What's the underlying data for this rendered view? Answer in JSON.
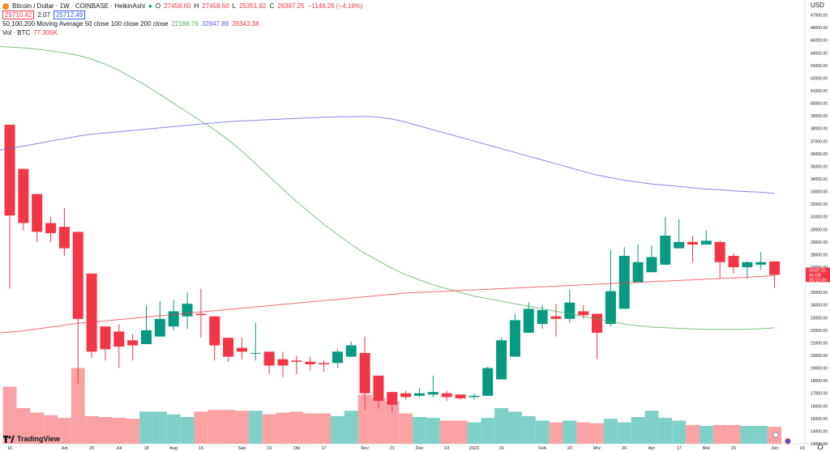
{
  "legend": {
    "symbol": "Bitcoin / Dollar · 1W · COINBASE · HeikinAshi",
    "o_label": "O",
    "o": "27458.60",
    "h_label": "H",
    "h": "27458.60",
    "l_label": "L",
    "l": "25351.92",
    "c_label": "C",
    "c": "26397.25",
    "change": "−1146.26 (−4.16%)",
    "bid": "25710.42",
    "spread": "2.07",
    "ask": "25712.49",
    "ma_title": "50,100,200 Moving Average 50 close 100 close 200 close",
    "ma50_value": "22186.76",
    "ma100_value": "32847.89",
    "ma200_value": "26343.38",
    "vol_title": "Vol · BTC",
    "vol_value": "77.305K"
  },
  "currency": "USD",
  "brand": "TradingView",
  "colors": {
    "up": "#089981",
    "down": "#f23645",
    "ma50": "#4caf50",
    "ma100": "#5b5fe0",
    "ma200": "#f23645",
    "vol_up": "#7fd1c8",
    "vol_down": "#faa1a4"
  },
  "price_badges": [
    "26397.25",
    "4d 10h",
    "25712.49"
  ],
  "chart_data": {
    "type": "candlestick",
    "ylim": [
      13000,
      48000
    ],
    "y_ticks": [
      "13000.00",
      "14000.00",
      "15000.00",
      "16000.00",
      "17000.00",
      "18000.00",
      "19000.00",
      "20000.00",
      "21000.00",
      "22000.00",
      "23000.00",
      "24000.00",
      "25000.00",
      "26000.00",
      "27000.00",
      "28000.00",
      "29000.00",
      "30000.00",
      "31000.00",
      "32000.00",
      "33000.00",
      "34000.00",
      "35000.00",
      "36000.00",
      "37000.00",
      "38000.00",
      "39000.00",
      "40000.00",
      "41000.00",
      "42000.00",
      "43000.00",
      "44000.00",
      "45000.00",
      "46000.00",
      "47000.00"
    ],
    "x_ticks": [
      {
        "label": "16",
        "bar": 0
      },
      {
        "label": "Jun",
        "bar": 4
      },
      {
        "label": "20",
        "bar": 6
      },
      {
        "label": "Jul",
        "bar": 8
      },
      {
        "label": "18",
        "bar": 10
      },
      {
        "label": "Aug",
        "bar": 12
      },
      {
        "label": "15",
        "bar": 14
      },
      {
        "label": "Sep",
        "bar": 17
      },
      {
        "label": "19",
        "bar": 19
      },
      {
        "label": "Okt",
        "bar": 21
      },
      {
        "label": "17",
        "bar": 23
      },
      {
        "label": "Nov",
        "bar": 26
      },
      {
        "label": "21",
        "bar": 28
      },
      {
        "label": "Dez",
        "bar": 30
      },
      {
        "label": "19",
        "bar": 32
      },
      {
        "label": "2023",
        "bar": 34
      },
      {
        "label": "16",
        "bar": 36
      },
      {
        "label": "Feb",
        "bar": 39
      },
      {
        "label": "20",
        "bar": 41
      },
      {
        "label": "Mrz",
        "bar": 43
      },
      {
        "label": "20",
        "bar": 45
      },
      {
        "label": "Apr",
        "bar": 47
      },
      {
        "label": "17",
        "bar": 49
      },
      {
        "label": "Mai",
        "bar": 51
      },
      {
        "label": "15",
        "bar": 53
      },
      {
        "label": "Jun",
        "bar": 56
      },
      {
        "label": "19",
        "bar": 58
      }
    ],
    "candles": [
      {
        "o": 38300,
        "h": 38300,
        "l": 25300,
        "c": 31100
      },
      {
        "o": 34800,
        "h": 34800,
        "l": 29900,
        "c": 30500
      },
      {
        "o": 32800,
        "h": 32800,
        "l": 29000,
        "c": 29800
      },
      {
        "o": 30500,
        "h": 31000,
        "l": 29000,
        "c": 29700
      },
      {
        "o": 30200,
        "h": 31700,
        "l": 27900,
        "c": 28500
      },
      {
        "o": 29800,
        "h": 29800,
        "l": 17700,
        "c": 22900
      },
      {
        "o": 26500,
        "h": 26500,
        "l": 19800,
        "c": 20300
      },
      {
        "o": 22300,
        "h": 22300,
        "l": 19600,
        "c": 20500
      },
      {
        "o": 21900,
        "h": 22500,
        "l": 19000,
        "c": 20700
      },
      {
        "o": 21200,
        "h": 21700,
        "l": 19600,
        "c": 20800
      },
      {
        "o": 20900,
        "h": 24000,
        "l": 20900,
        "c": 22000
      },
      {
        "o": 21500,
        "h": 24300,
        "l": 21500,
        "c": 22900
      },
      {
        "o": 22300,
        "h": 24400,
        "l": 22000,
        "c": 23500
      },
      {
        "o": 23100,
        "h": 25000,
        "l": 22100,
        "c": 24100
      },
      {
        "o": 23300,
        "h": 25300,
        "l": 21400,
        "c": 23200
      },
      {
        "o": 23100,
        "h": 23100,
        "l": 19600,
        "c": 20800
      },
      {
        "o": 21400,
        "h": 21400,
        "l": 19500,
        "c": 19900
      },
      {
        "o": 20600,
        "h": 21400,
        "l": 19700,
        "c": 20300
      },
      {
        "o": 20200,
        "h": 22600,
        "l": 19600,
        "c": 20200
      },
      {
        "o": 20300,
        "h": 20300,
        "l": 18500,
        "c": 19200
      },
      {
        "o": 19700,
        "h": 20300,
        "l": 18300,
        "c": 19200
      },
      {
        "o": 19600,
        "h": 20000,
        "l": 18500,
        "c": 19500
      },
      {
        "o": 19500,
        "h": 19900,
        "l": 18800,
        "c": 19300
      },
      {
        "o": 19400,
        "h": 19600,
        "l": 18700,
        "c": 19300
      },
      {
        "o": 19400,
        "h": 20500,
        "l": 19000,
        "c": 20300
      },
      {
        "o": 19900,
        "h": 21100,
        "l": 19900,
        "c": 20800
      },
      {
        "o": 20200,
        "h": 21500,
        "l": 15700,
        "c": 17000
      },
      {
        "o": 18400,
        "h": 18400,
        "l": 15800,
        "c": 16400
      },
      {
        "o": 17100,
        "h": 17100,
        "l": 15500,
        "c": 16100
      },
      {
        "o": 17000,
        "h": 17200,
        "l": 16500,
        "c": 16700
      },
      {
        "o": 16800,
        "h": 17400,
        "l": 16700,
        "c": 17000
      },
      {
        "o": 16900,
        "h": 18400,
        "l": 16700,
        "c": 17100
      },
      {
        "o": 17000,
        "h": 17200,
        "l": 16400,
        "c": 16700
      },
      {
        "o": 16900,
        "h": 16900,
        "l": 16500,
        "c": 16600
      },
      {
        "o": 16700,
        "h": 17000,
        "l": 16500,
        "c": 16800
      },
      {
        "o": 16800,
        "h": 19100,
        "l": 16800,
        "c": 19000
      },
      {
        "o": 18100,
        "h": 21400,
        "l": 18100,
        "c": 21200
      },
      {
        "o": 19900,
        "h": 23300,
        "l": 19900,
        "c": 22800
      },
      {
        "o": 21800,
        "h": 24200,
        "l": 21800,
        "c": 23700
      },
      {
        "o": 22500,
        "h": 24000,
        "l": 22100,
        "c": 23600
      },
      {
        "o": 23100,
        "h": 24100,
        "l": 21500,
        "c": 22900
      },
      {
        "o": 22900,
        "h": 25200,
        "l": 22600,
        "c": 24200
      },
      {
        "o": 23500,
        "h": 24000,
        "l": 22900,
        "c": 23200
      },
      {
        "o": 23300,
        "h": 23300,
        "l": 19700,
        "c": 21800
      },
      {
        "o": 22500,
        "h": 28400,
        "l": 22300,
        "c": 25100
      },
      {
        "o": 23700,
        "h": 28600,
        "l": 23700,
        "c": 27900
      },
      {
        "o": 25800,
        "h": 28800,
        "l": 25800,
        "c": 27400
      },
      {
        "o": 26600,
        "h": 28700,
        "l": 26600,
        "c": 27800
      },
      {
        "o": 27200,
        "h": 31000,
        "l": 27200,
        "c": 29500
      },
      {
        "o": 28500,
        "h": 30800,
        "l": 28500,
        "c": 29000
      },
      {
        "o": 29000,
        "h": 29500,
        "l": 27400,
        "c": 28800
      },
      {
        "o": 28800,
        "h": 29900,
        "l": 28800,
        "c": 29100
      },
      {
        "o": 29000,
        "h": 29100,
        "l": 26100,
        "c": 27400
      },
      {
        "o": 27900,
        "h": 28100,
        "l": 26500,
        "c": 27000
      },
      {
        "o": 27000,
        "h": 27500,
        "l": 26100,
        "c": 27400
      },
      {
        "o": 27200,
        "h": 28200,
        "l": 26800,
        "c": 27400
      },
      {
        "o": 27459,
        "h": 27459,
        "l": 25352,
        "c": 26397
      }
    ],
    "volume_scale_max": 100,
    "volumes": [
      64,
      40,
      35,
      32,
      29,
      85,
      31,
      30,
      29,
      28,
      36,
      36,
      33,
      30,
      36,
      38,
      38,
      37,
      37,
      33,
      35,
      36,
      34,
      34,
      31,
      37,
      55,
      51,
      47,
      34,
      30,
      29,
      26,
      26,
      24,
      29,
      40,
      36,
      31,
      26,
      24,
      26,
      24,
      23,
      28,
      24,
      30,
      37,
      29,
      26,
      21,
      20,
      21,
      21,
      20,
      20,
      19
    ],
    "ma50": [
      44500,
      44400,
      44300,
      44150,
      44000,
      43800,
      43500,
      43100,
      42600,
      42000,
      41400,
      40700,
      40000,
      39300,
      38600,
      37900,
      37100,
      36200,
      35200,
      34200,
      33200,
      32200,
      31300,
      30400,
      29600,
      28800,
      28100,
      27500,
      26900,
      26400,
      26000,
      25600,
      25300,
      25000,
      24700,
      24500,
      24300,
      24100,
      23900,
      23700,
      23500,
      23300,
      23100,
      22900,
      22700,
      22500,
      22350,
      22250,
      22200,
      22150,
      22100,
      22080,
      22070,
      22060,
      22080,
      22120,
      22187
    ],
    "ma100": [
      36300,
      36600,
      36800,
      37000,
      37200,
      37400,
      37550,
      37650,
      37750,
      37850,
      37950,
      38050,
      38150,
      38250,
      38350,
      38450,
      38550,
      38600,
      38650,
      38700,
      38750,
      38800,
      38850,
      38900,
      38920,
      38940,
      38960,
      38900,
      38750,
      38500,
      38200,
      37900,
      37600,
      37300,
      37000,
      36700,
      36400,
      36100,
      35800,
      35500,
      35200,
      34900,
      34600,
      34300,
      34100,
      33900,
      33750,
      33600,
      33500,
      33400,
      33300,
      33200,
      33150,
      33050,
      33000,
      32950,
      32848
    ],
    "ma200": [
      21800,
      21950,
      22100,
      22250,
      22400,
      22550,
      22650,
      22750,
      22850,
      22950,
      23050,
      23150,
      23250,
      23350,
      23450,
      23550,
      23650,
      23750,
      23850,
      23950,
      24050,
      24150,
      24250,
      24350,
      24450,
      24550,
      24650,
      24750,
      24850,
      24950,
      25000,
      25050,
      25100,
      25150,
      25200,
      25250,
      25300,
      25350,
      25400,
      25450,
      25500,
      25550,
      25600,
      25650,
      25700,
      25750,
      25800,
      25850,
      25900,
      25950,
      26000,
      26050,
      26100,
      26150,
      26200,
      26270,
      26343
    ]
  }
}
